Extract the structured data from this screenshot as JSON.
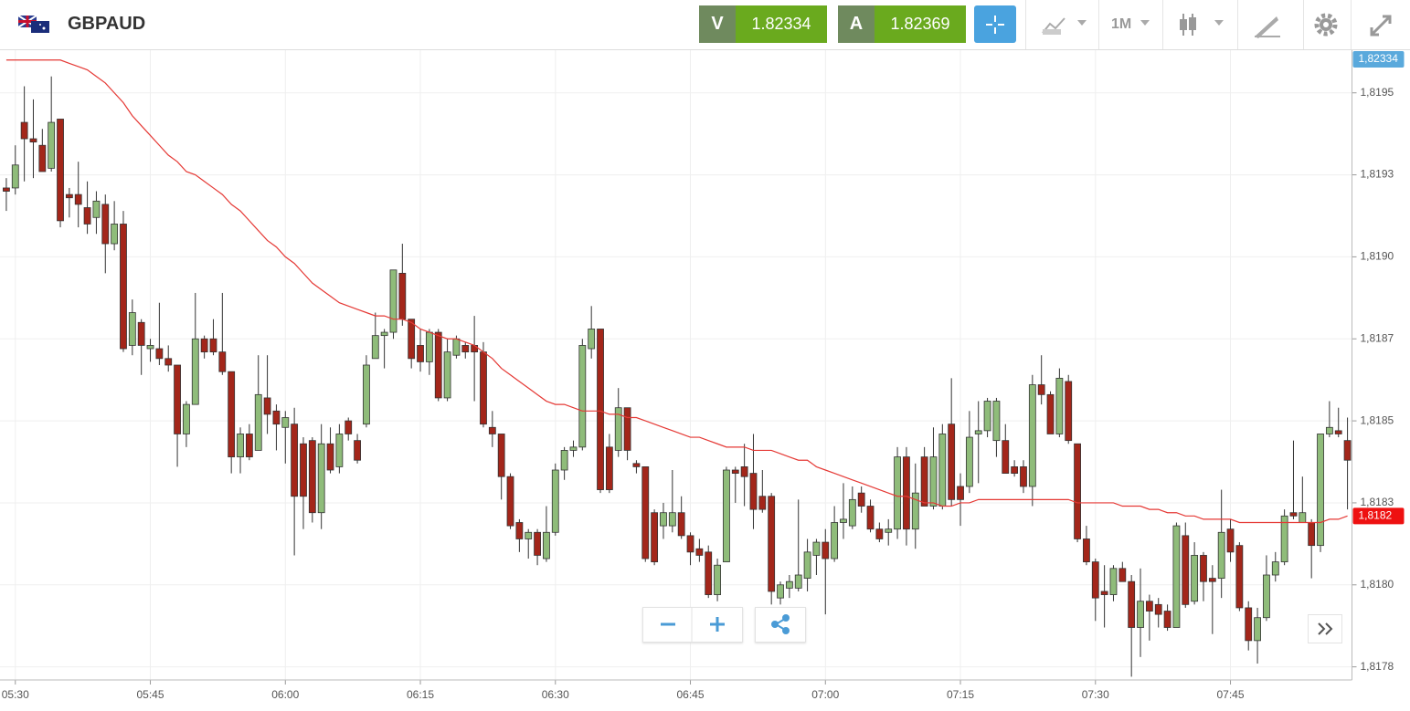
{
  "header": {
    "symbol": "GBPAUD",
    "sell_label": "V",
    "sell": "1.82334",
    "buy_label": "A",
    "buy": "1.82369",
    "timeframe": "1M"
  },
  "chart_data": {
    "type": "candlestick",
    "categories": [
      null,
      "05:30",
      null,
      null,
      null,
      null,
      null,
      null,
      null,
      null,
      null,
      null,
      null,
      null,
      null,
      null,
      "05:45",
      null,
      null,
      null,
      null,
      null,
      null,
      null,
      null,
      null,
      null,
      null,
      null,
      null,
      null,
      "06:00",
      null,
      null,
      null,
      null,
      null,
      null,
      null,
      null,
      null,
      null,
      null,
      null,
      null,
      null,
      "06:15",
      null,
      null,
      null,
      null,
      null,
      null,
      null,
      null,
      null,
      null,
      null,
      null,
      null,
      null,
      "06:30",
      null,
      null,
      null,
      null,
      null,
      null,
      null,
      null,
      null,
      null,
      null,
      null,
      null,
      null,
      "06:45",
      null,
      null,
      null,
      null,
      null,
      null,
      null,
      null,
      null,
      null,
      null,
      null,
      null,
      null,
      "07:00",
      null,
      null,
      null,
      null,
      null,
      null,
      null,
      null,
      null,
      null,
      null,
      null,
      null,
      null,
      "07:15",
      null,
      null,
      null,
      null,
      null,
      null,
      null,
      null,
      null,
      null,
      null,
      null,
      null,
      null,
      "07:30",
      null,
      null,
      null,
      null,
      null,
      null,
      null,
      null,
      null,
      null,
      null,
      null,
      null,
      null,
      "07:45",
      null,
      null,
      null,
      null,
      null,
      null,
      null,
      null,
      null,
      null,
      null,
      null,
      null
    ],
    "ohlc": [
      [
        1.81921,
        1.81924,
        1.81914,
        1.8192
      ],
      [
        1.81921,
        1.81934,
        1.81919,
        1.81928
      ],
      [
        1.81941,
        1.81952,
        1.81923,
        1.81936
      ],
      [
        1.81936,
        1.81948,
        1.81924,
        1.81935
      ],
      [
        1.81934,
        1.81939,
        1.81926,
        1.81926
      ],
      [
        1.81927,
        1.81955,
        1.81926,
        1.81941
      ],
      [
        1.81942,
        1.81942,
        1.81909,
        1.81911
      ],
      [
        1.81919,
        1.81921,
        1.81912,
        1.81918
      ],
      [
        1.81919,
        1.81929,
        1.81909,
        1.81916
      ],
      [
        1.81915,
        1.81923,
        1.81907,
        1.8191
      ],
      [
        1.81912,
        1.8192,
        1.81907,
        1.81917
      ],
      [
        1.81916,
        1.81919,
        1.81895,
        1.81904
      ],
      [
        1.81904,
        1.81917,
        1.81902,
        1.8191
      ],
      [
        1.8191,
        1.81914,
        1.81871,
        1.81872
      ],
      [
        1.81873,
        1.81887,
        1.8187,
        1.81883
      ],
      [
        1.8188,
        1.81881,
        1.81864,
        1.81873
      ],
      [
        1.81872,
        1.81875,
        1.81868,
        1.81873
      ],
      [
        1.81872,
        1.81886,
        1.81867,
        1.81869
      ],
      [
        1.81869,
        1.81873,
        1.81865,
        1.81867
      ],
      [
        1.81867,
        1.81867,
        1.81836,
        1.81846
      ],
      [
        1.81846,
        1.81856,
        1.81842,
        1.81855
      ],
      [
        1.81855,
        1.81889,
        1.81855,
        1.81875
      ],
      [
        1.81875,
        1.81876,
        1.81869,
        1.81871
      ],
      [
        1.81875,
        1.81881,
        1.8187,
        1.81871
      ],
      [
        1.81871,
        1.81889,
        1.81864,
        1.81865
      ],
      [
        1.81865,
        1.81865,
        1.81834,
        1.81839
      ],
      [
        1.81839,
        1.81848,
        1.81834,
        1.81846
      ],
      [
        1.81846,
        1.81849,
        1.81838,
        1.81839
      ],
      [
        1.81841,
        1.8187,
        1.81841,
        1.81858
      ],
      [
        1.81857,
        1.8187,
        1.81846,
        1.81852
      ],
      [
        1.81853,
        1.81855,
        1.81841,
        1.81849
      ],
      [
        1.81848,
        1.81853,
        1.81837,
        1.81851
      ],
      [
        1.81849,
        1.81854,
        1.81809,
        1.81827
      ],
      [
        1.81843,
        1.81845,
        1.81817,
        1.81827
      ],
      [
        1.81844,
        1.81845,
        1.81819,
        1.81822
      ],
      [
        1.81822,
        1.81849,
        1.81817,
        1.81843
      ],
      [
        1.81843,
        1.81848,
        1.81834,
        1.81835
      ],
      [
        1.81836,
        1.81849,
        1.81834,
        1.81846
      ],
      [
        1.8185,
        1.81851,
        1.81844,
        1.81846
      ],
      [
        1.81844,
        1.81846,
        1.81837,
        1.81838
      ],
      [
        1.81849,
        1.8187,
        1.81848,
        1.81867
      ],
      [
        1.81869,
        1.81883,
        1.81869,
        1.81876
      ],
      [
        1.81876,
        1.81878,
        1.81866,
        1.81877
      ],
      [
        1.81877,
        1.81896,
        1.81875,
        1.81896
      ],
      [
        1.81895,
        1.81904,
        1.81879,
        1.81881
      ],
      [
        1.81881,
        1.81881,
        1.81866,
        1.81869
      ],
      [
        1.81873,
        1.81878,
        1.81865,
        1.81868
      ],
      [
        1.81868,
        1.81878,
        1.81864,
        1.81877
      ],
      [
        1.81877,
        1.81878,
        1.81856,
        1.81857
      ],
      [
        1.81857,
        1.81875,
        1.81856,
        1.81871
      ],
      [
        1.8187,
        1.81876,
        1.81869,
        1.81875
      ],
      [
        1.81873,
        1.81874,
        1.81869,
        1.81871
      ],
      [
        1.81873,
        1.81882,
        1.81856,
        1.81871
      ],
      [
        1.81871,
        1.81874,
        1.81848,
        1.81849
      ],
      [
        1.81848,
        1.81853,
        1.81842,
        1.81846
      ],
      [
        1.81846,
        1.81846,
        1.81826,
        1.81833
      ],
      [
        1.81833,
        1.81834,
        1.81817,
        1.81818
      ],
      [
        1.81819,
        1.8182,
        1.8181,
        1.81814
      ],
      [
        1.81814,
        1.81817,
        1.81808,
        1.81816
      ],
      [
        1.81816,
        1.81817,
        1.81806,
        1.81809
      ],
      [
        1.81808,
        1.81824,
        1.81807,
        1.81816
      ],
      [
        1.81816,
        1.81837,
        1.81815,
        1.81835
      ],
      [
        1.81835,
        1.81842,
        1.81832,
        1.81841
      ],
      [
        1.81841,
        1.81844,
        1.81839,
        1.81842
      ],
      [
        1.81842,
        1.81875,
        1.81841,
        1.81873
      ],
      [
        1.81872,
        1.81885,
        1.81869,
        1.81878
      ],
      [
        1.81878,
        1.81878,
        1.81828,
        1.81829
      ],
      [
        1.81842,
        1.81846,
        1.81828,
        1.81829
      ],
      [
        1.81841,
        1.8186,
        1.81839,
        1.81854
      ],
      [
        1.81854,
        1.81854,
        1.81838,
        1.81841
      ],
      [
        1.81837,
        1.81838,
        1.81834,
        1.81836
      ],
      [
        1.81836,
        1.81836,
        1.81807,
        1.81808
      ],
      [
        1.81822,
        1.81823,
        1.81806,
        1.81807
      ],
      [
        1.81818,
        1.81825,
        1.81814,
        1.81822
      ],
      [
        1.81818,
        1.81835,
        1.81816,
        1.81822
      ],
      [
        1.81822,
        1.81827,
        1.81814,
        1.81815
      ],
      [
        1.81815,
        1.81816,
        1.81806,
        1.8181
      ],
      [
        1.81811,
        1.81814,
        1.81807,
        1.81809
      ],
      [
        1.8181,
        1.81812,
        1.81796,
        1.81797
      ],
      [
        1.81797,
        1.81808,
        1.81795,
        1.81806
      ],
      [
        1.81807,
        1.81836,
        1.81807,
        1.81835
      ],
      [
        1.81835,
        1.81836,
        1.81825,
        1.81834
      ],
      [
        1.81836,
        1.81843,
        1.81824,
        1.81833
      ],
      [
        1.81834,
        1.81846,
        1.81817,
        1.81823
      ],
      [
        1.81827,
        1.81835,
        1.81822,
        1.81823
      ],
      [
        1.81827,
        1.81828,
        1.81794,
        1.81798
      ],
      [
        1.81796,
        1.81801,
        1.81794,
        1.818
      ],
      [
        1.81799,
        1.81803,
        1.81796,
        1.81801
      ],
      [
        1.81799,
        1.81826,
        1.81798,
        1.81803
      ],
      [
        1.81802,
        1.81814,
        1.81798,
        1.8181
      ],
      [
        1.81809,
        1.81814,
        1.81803,
        1.81813
      ],
      [
        1.81813,
        1.81817,
        1.81791,
        1.81808
      ],
      [
        1.81808,
        1.81824,
        1.81807,
        1.81819
      ],
      [
        1.81819,
        1.81831,
        1.81814,
        1.8182
      ],
      [
        1.81818,
        1.8183,
        1.81817,
        1.81826
      ],
      [
        1.81828,
        1.8183,
        1.81822,
        1.81824
      ],
      [
        1.81824,
        1.81826,
        1.81816,
        1.81817
      ],
      [
        1.81817,
        1.81819,
        1.81813,
        1.81814
      ],
      [
        1.81816,
        1.8182,
        1.81812,
        1.81817
      ],
      [
        1.81817,
        1.81842,
        1.81814,
        1.81839
      ],
      [
        1.81839,
        1.81842,
        1.81812,
        1.81817
      ],
      [
        1.81817,
        1.81837,
        1.81811,
        1.81828
      ],
      [
        1.81839,
        1.81842,
        1.81824,
        1.81824
      ],
      [
        1.81824,
        1.81848,
        1.81823,
        1.81839
      ],
      [
        1.81824,
        1.81849,
        1.81823,
        1.81846
      ],
      [
        1.81849,
        1.81863,
        1.81824,
        1.81826
      ],
      [
        1.8183,
        1.81834,
        1.81818,
        1.81826
      ],
      [
        1.8183,
        1.81853,
        1.81828,
        1.81845
      ],
      [
        1.81846,
        1.81856,
        1.81831,
        1.81847
      ],
      [
        1.81847,
        1.81857,
        1.81845,
        1.81856
      ],
      [
        1.81844,
        1.81857,
        1.81839,
        1.81856
      ],
      [
        1.81844,
        1.81849,
        1.81834,
        1.81834
      ],
      [
        1.81836,
        1.81838,
        1.81833,
        1.81834
      ],
      [
        1.81836,
        1.81838,
        1.81828,
        1.8183
      ],
      [
        1.8183,
        1.81864,
        1.81824,
        1.81861
      ],
      [
        1.81861,
        1.8187,
        1.81855,
        1.81858
      ],
      [
        1.81858,
        1.81859,
        1.81846,
        1.81846
      ],
      [
        1.81846,
        1.81866,
        1.81845,
        1.81863
      ],
      [
        1.81862,
        1.81864,
        1.81843,
        1.81844
      ],
      [
        1.81843,
        1.81843,
        1.81813,
        1.81814
      ],
      [
        1.81814,
        1.81818,
        1.81806,
        1.81807
      ],
      [
        1.81807,
        1.81808,
        1.81789,
        1.81796
      ],
      [
        1.81798,
        1.81806,
        1.81787,
        1.81797
      ],
      [
        1.81797,
        1.81806,
        1.81795,
        1.81805
      ],
      [
        1.81805,
        1.81807,
        1.81801,
        1.81801
      ],
      [
        1.81801,
        1.81803,
        1.81772,
        1.81787
      ],
      [
        1.81787,
        1.81805,
        1.81778,
        1.81795
      ],
      [
        1.81795,
        1.81797,
        1.81783,
        1.81792
      ],
      [
        1.81794,
        1.81796,
        1.81787,
        1.81791
      ],
      [
        1.81792,
        1.81794,
        1.81786,
        1.81787
      ],
      [
        1.81787,
        1.81819,
        1.81787,
        1.81818
      ],
      [
        1.81815,
        1.81819,
        1.81793,
        1.81794
      ],
      [
        1.81795,
        1.81813,
        1.81794,
        1.81809
      ],
      [
        1.81809,
        1.8181,
        1.81795,
        1.81801
      ],
      [
        1.81802,
        1.81806,
        1.81785,
        1.81801
      ],
      [
        1.81802,
        1.81829,
        1.81796,
        1.81816
      ],
      [
        1.81817,
        1.8182,
        1.81807,
        1.8181
      ],
      [
        1.81812,
        1.81813,
        1.81792,
        1.81793
      ],
      [
        1.81793,
        1.81795,
        1.8178,
        1.81783
      ],
      [
        1.81783,
        1.81793,
        1.81776,
        1.8179
      ],
      [
        1.8179,
        1.81809,
        1.81789,
        1.81803
      ],
      [
        1.81803,
        1.8181,
        1.81801,
        1.81807
      ],
      [
        1.81807,
        1.81823,
        1.81806,
        1.81821
      ],
      [
        1.81822,
        1.81844,
        1.8182,
        1.81821
      ],
      [
        1.81819,
        1.81833,
        1.81819,
        1.81822
      ],
      [
        1.81819,
        1.8182,
        1.81802,
        1.81812
      ],
      [
        1.81812,
        1.81846,
        1.8181,
        1.81846
      ],
      [
        1.81846,
        1.81856,
        1.81845,
        1.81848
      ],
      [
        1.81847,
        1.81854,
        1.81845,
        1.81846
      ],
      [
        1.81844,
        1.81851,
        1.81823,
        1.81838
      ]
    ],
    "up_color": "#8fbc7a",
    "down_color": "#a3261a",
    "series": [
      {
        "color": "#e53935",
        "values": [
          1.8196,
          1.8196,
          1.8196,
          1.8196,
          1.8196,
          1.8196,
          1.8196,
          1.81959,
          1.81958,
          1.81957,
          1.81955,
          1.81953,
          1.8195,
          1.81947,
          1.81943,
          1.8194,
          1.81937,
          1.81934,
          1.81931,
          1.81929,
          1.81926,
          1.81925,
          1.81923,
          1.81921,
          1.81919,
          1.81916,
          1.81914,
          1.81911,
          1.81908,
          1.81905,
          1.81903,
          1.819,
          1.81898,
          1.81895,
          1.81892,
          1.8189,
          1.81888,
          1.81886,
          1.81885,
          1.81884,
          1.81883,
          1.81882,
          1.81882,
          1.81881,
          1.81881,
          1.8188,
          1.81878,
          1.81877,
          1.81876,
          1.81875,
          1.81875,
          1.81874,
          1.81873,
          1.81871,
          1.81869,
          1.81866,
          1.81864,
          1.81862,
          1.8186,
          1.81858,
          1.81856,
          1.81855,
          1.81855,
          1.81854,
          1.81853,
          1.81853,
          1.81853,
          1.81852,
          1.81852,
          1.81851,
          1.81851,
          1.8185,
          1.81849,
          1.81848,
          1.81847,
          1.81846,
          1.81845,
          1.81845,
          1.81844,
          1.81843,
          1.81842,
          1.81842,
          1.81842,
          1.81841,
          1.81841,
          1.81841,
          1.8184,
          1.81839,
          1.81838,
          1.81838,
          1.81836,
          1.81835,
          1.81834,
          1.81833,
          1.81832,
          1.81831,
          1.8183,
          1.81829,
          1.81828,
          1.81827,
          1.81827,
          1.81826,
          1.81825,
          1.81825,
          1.81824,
          1.81824,
          1.81825,
          1.81825,
          1.81826,
          1.81826,
          1.81826,
          1.81826,
          1.81826,
          1.81826,
          1.81826,
          1.81826,
          1.81826,
          1.81826,
          1.81826,
          1.81825,
          1.81825,
          1.81825,
          1.81825,
          1.81825,
          1.81824,
          1.81824,
          1.81824,
          1.81823,
          1.81823,
          1.81822,
          1.81822,
          1.81821,
          1.81821,
          1.8182,
          1.8182,
          1.8182,
          1.8182,
          1.81819,
          1.81819,
          1.81819,
          1.81819,
          1.81819,
          1.81819,
          1.81819,
          1.81819,
          1.81819,
          1.81819,
          1.8182,
          1.8182,
          1.81821
        ]
      }
    ],
    "ylim": [
      1.81771,
      1.81963
    ],
    "yticks": [
      {
        "value": 1.8195,
        "label": "1,8195"
      },
      {
        "value": 1.81925,
        "label": "1,8193"
      },
      {
        "value": 1.819,
        "label": "1,8190"
      },
      {
        "value": 1.81875,
        "label": "1,8187"
      },
      {
        "value": 1.8185,
        "label": "1,8185"
      },
      {
        "value": 1.81825,
        "label": "1,8183"
      },
      {
        "value": 1.818,
        "label": "1,8180"
      },
      {
        "value": 1.81775,
        "label": "1,8178"
      }
    ],
    "grid": true,
    "price_labels": [
      {
        "value": 1.82334,
        "label": "1,82334",
        "color": "#5aa9dc"
      },
      {
        "value": 1.81821,
        "label": "1,8182",
        "color": "#ee1111"
      }
    ]
  }
}
